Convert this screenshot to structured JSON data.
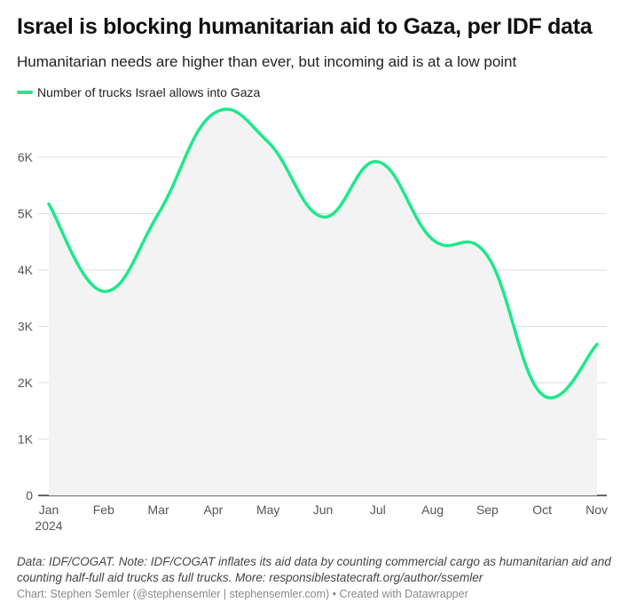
{
  "header": {
    "title": "Israel is blocking humanitarian aid to Gaza, per IDF data",
    "subtitle": "Humanitarian needs are higher than ever, but incoming aid is at a low point"
  },
  "colors": {
    "line": "#1de88a",
    "area": "#f3f3f3",
    "grid": "#dddddd",
    "axis": "#333333"
  },
  "chart_data": {
    "type": "line",
    "title": "Israel is blocking humanitarian aid to Gaza, per IDF data",
    "subtitle": "Humanitarian needs are higher than ever, but incoming aid is at a low point",
    "xlabel": "",
    "ylabel": "",
    "categories": [
      "Jan",
      "Feb",
      "Mar",
      "Apr",
      "May",
      "Jun",
      "Jul",
      "Aug",
      "Sep",
      "Oct",
      "Nov"
    ],
    "x_sublabels": [
      "2024",
      "",
      "",
      "",
      "",
      "",
      "",
      "",
      "",
      "",
      ""
    ],
    "series": [
      {
        "name": "Number of trucks Israel allows into Gaza",
        "values": [
          5170,
          3620,
          5000,
          6770,
          6270,
          4940,
          5920,
          4540,
          4250,
          1790,
          2680
        ]
      }
    ],
    "ylim": [
      0,
      7000
    ],
    "yticks": [
      0,
      1000,
      2000,
      3000,
      4000,
      5000,
      6000
    ],
    "ytick_labels": [
      "0",
      "1K",
      "2K",
      "3K",
      "4K",
      "5K",
      "6K"
    ],
    "grid": true,
    "legend": "top-left",
    "area_fill": true
  },
  "footer": {
    "notes": "Data: IDF/COGAT. Note: IDF/COGAT inflates its aid data by counting commercial cargo as humanitarian aid and counting half-full aid trucks as full trucks. More: responsiblestatecraft.org/author/ssemler",
    "credit": "Chart: Stephen Semler (@stephensemler | stephensemler.com) • Created with Datawrapper"
  }
}
